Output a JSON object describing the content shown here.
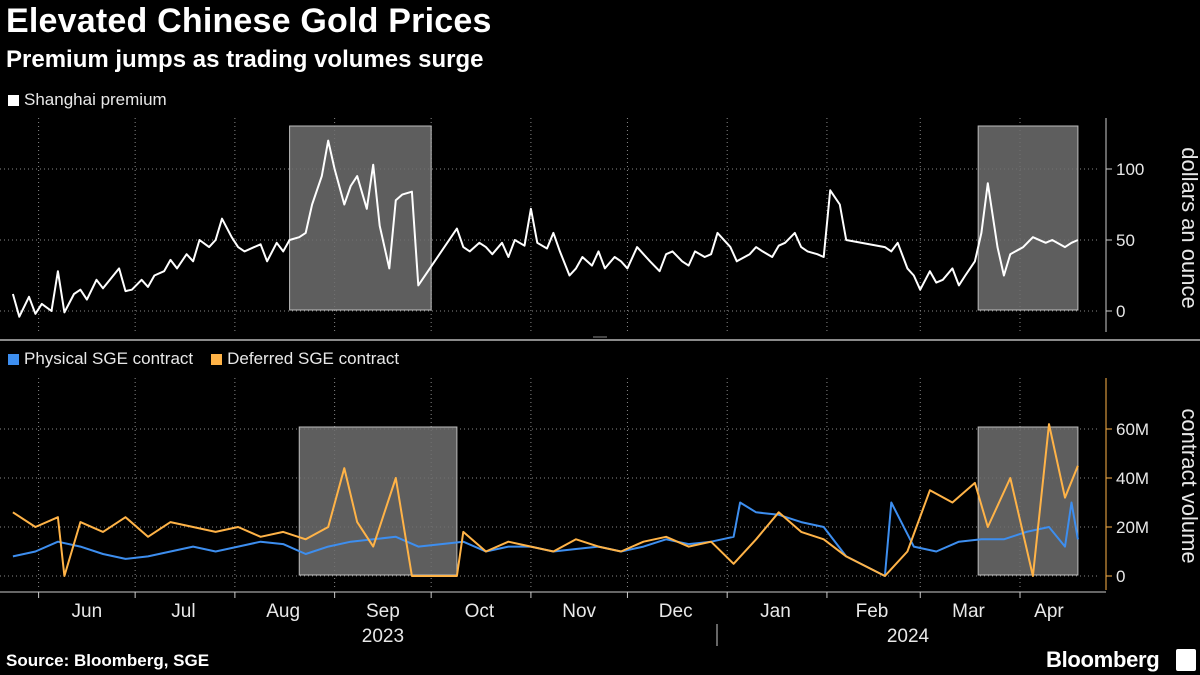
{
  "title": "Elevated Chinese Gold Prices",
  "subtitle": "Premium jumps as trading volumes surge",
  "source": "Source: Bloomberg, SGE",
  "brand": "Bloomberg",
  "colors": {
    "premium": "#ffffff",
    "physical": "#3d8eef",
    "deferred": "#ffb347",
    "grid": "#888888",
    "highlight": "#6e6e6e"
  },
  "chart_data": [
    {
      "type": "line",
      "ylabel": "dollars an ounce",
      "ylim": [
        -15,
        135
      ],
      "yticks": [
        0,
        50,
        100
      ],
      "grid": true,
      "legend_position": "top-left",
      "x_tick_labels": [
        "Jun",
        "Jul",
        "Aug",
        "Sep",
        "Oct",
        "Nov",
        "Dec",
        "Jan",
        "Feb",
        "Mar",
        "Apr"
      ],
      "year_labels": [
        "2023",
        "2024"
      ],
      "highlights": [
        {
          "from": "2023-08-18",
          "to": "2023-10-01"
        },
        {
          "from": "2024-03-19",
          "to": "2024-04-19"
        }
      ],
      "series": [
        {
          "name": "Shanghai premium",
          "color": "#ffffff",
          "x": [
            "2023-05-24",
            "2023-05-26",
            "2023-05-29",
            "2023-05-31",
            "2023-06-02",
            "2023-06-05",
            "2023-06-07",
            "2023-06-09",
            "2023-06-12",
            "2023-06-14",
            "2023-06-16",
            "2023-06-19",
            "2023-06-21",
            "2023-06-26",
            "2023-06-28",
            "2023-06-30",
            "2023-07-03",
            "2023-07-05",
            "2023-07-07",
            "2023-07-10",
            "2023-07-12",
            "2023-07-14",
            "2023-07-17",
            "2023-07-19",
            "2023-07-21",
            "2023-07-24",
            "2023-07-26",
            "2023-07-28",
            "2023-07-31",
            "2023-08-02",
            "2023-08-04",
            "2023-08-07",
            "2023-08-09",
            "2023-08-11",
            "2023-08-14",
            "2023-08-16",
            "2023-08-18",
            "2023-08-21",
            "2023-08-23",
            "2023-08-25",
            "2023-08-28",
            "2023-08-30",
            "2023-09-01",
            "2023-09-04",
            "2023-09-06",
            "2023-09-08",
            "2023-09-11",
            "2023-09-13",
            "2023-09-15",
            "2023-09-18",
            "2023-09-20",
            "2023-09-22",
            "2023-09-25",
            "2023-09-27",
            "2023-10-09",
            "2023-10-11",
            "2023-10-13",
            "2023-10-16",
            "2023-10-18",
            "2023-10-20",
            "2023-10-23",
            "2023-10-25",
            "2023-10-27",
            "2023-10-30",
            "2023-11-01",
            "2023-11-03",
            "2023-11-06",
            "2023-11-08",
            "2023-11-10",
            "2023-11-13",
            "2023-11-15",
            "2023-11-17",
            "2023-11-20",
            "2023-11-22",
            "2023-11-24",
            "2023-11-27",
            "2023-11-29",
            "2023-12-01",
            "2023-12-04",
            "2023-12-06",
            "2023-12-08",
            "2023-12-11",
            "2023-12-13",
            "2023-12-15",
            "2023-12-18",
            "2023-12-20",
            "2023-12-22",
            "2023-12-25",
            "2023-12-27",
            "2023-12-29",
            "2024-01-02",
            "2024-01-04",
            "2024-01-08",
            "2024-01-10",
            "2024-01-12",
            "2024-01-15",
            "2024-01-17",
            "2024-01-19",
            "2024-01-22",
            "2024-01-24",
            "2024-01-26",
            "2024-01-29",
            "2024-01-31",
            "2024-02-02",
            "2024-02-05",
            "2024-02-07",
            "2024-02-19",
            "2024-02-21",
            "2024-02-23",
            "2024-02-26",
            "2024-02-28",
            "2024-03-01",
            "2024-03-04",
            "2024-03-06",
            "2024-03-08",
            "2024-03-11",
            "2024-03-13",
            "2024-03-15",
            "2024-03-18",
            "2024-03-20",
            "2024-03-22",
            "2024-03-25",
            "2024-03-27",
            "2024-03-29",
            "2024-04-02",
            "2024-04-05",
            "2024-04-09",
            "2024-04-11",
            "2024-04-15",
            "2024-04-17",
            "2024-04-19"
          ],
          "y": [
            12,
            -4,
            10,
            -2,
            5,
            0,
            28,
            -1,
            12,
            15,
            8,
            22,
            16,
            30,
            14,
            15,
            22,
            17,
            25,
            28,
            36,
            30,
            40,
            35,
            50,
            45,
            50,
            65,
            52,
            45,
            42,
            45,
            47,
            35,
            48,
            42,
            50,
            52,
            55,
            75,
            95,
            120,
            100,
            75,
            88,
            95,
            72,
            103,
            60,
            30,
            78,
            82,
            84,
            18,
            58,
            45,
            42,
            48,
            45,
            40,
            48,
            38,
            50,
            46,
            72,
            48,
            44,
            55,
            42,
            25,
            30,
            38,
            32,
            42,
            30,
            38,
            35,
            30,
            45,
            40,
            35,
            28,
            40,
            42,
            35,
            32,
            42,
            38,
            40,
            55,
            45,
            35,
            40,
            45,
            42,
            38,
            46,
            48,
            55,
            45,
            42,
            40,
            38,
            85,
            75,
            50,
            45,
            42,
            48,
            30,
            25,
            15,
            28,
            20,
            22,
            30,
            18,
            25,
            35,
            55,
            90,
            45,
            25,
            40,
            45,
            52,
            48,
            50,
            45,
            48,
            50
          ]
        }
      ]
    },
    {
      "type": "line",
      "ylabel": "contract volume",
      "ylim": [
        0,
        80
      ],
      "yticks": [
        0,
        20,
        40,
        60
      ],
      "ytick_labels": [
        "0",
        "20M",
        "40M",
        "60M"
      ],
      "grid": true,
      "legend_position": "top-left",
      "x_tick_labels": [
        "Jun",
        "Jul",
        "Aug",
        "Sep",
        "Oct",
        "Nov",
        "Dec",
        "Jan",
        "Feb",
        "Mar",
        "Apr"
      ],
      "year_labels": [
        "2023",
        "2024"
      ],
      "highlights": [
        {
          "from": "2023-08-21",
          "to": "2023-10-09"
        },
        {
          "from": "2024-03-19",
          "to": "2024-04-19"
        }
      ],
      "series": [
        {
          "name": "Physical SGE contract",
          "color": "#3d8eef",
          "x": [
            "2023-05-24",
            "2023-05-31",
            "2023-06-07",
            "2023-06-14",
            "2023-06-21",
            "2023-06-28",
            "2023-07-05",
            "2023-07-12",
            "2023-07-19",
            "2023-07-26",
            "2023-08-02",
            "2023-08-09",
            "2023-08-16",
            "2023-08-23",
            "2023-08-30",
            "2023-09-06",
            "2023-09-13",
            "2023-09-20",
            "2023-09-27",
            "2023-10-11",
            "2023-10-18",
            "2023-10-25",
            "2023-11-01",
            "2023-11-08",
            "2023-11-15",
            "2023-11-22",
            "2023-11-29",
            "2023-12-06",
            "2023-12-13",
            "2023-12-20",
            "2023-12-27",
            "2024-01-03",
            "2024-01-05",
            "2024-01-10",
            "2024-01-17",
            "2024-01-24",
            "2024-01-31",
            "2024-02-07",
            "2024-02-19",
            "2024-02-21",
            "2024-02-28",
            "2024-03-06",
            "2024-03-13",
            "2024-03-20",
            "2024-03-27",
            "2024-04-03",
            "2024-04-10",
            "2024-04-15",
            "2024-04-17",
            "2024-04-19"
          ],
          "y": [
            8,
            10,
            14,
            12,
            9,
            7,
            8,
            10,
            12,
            10,
            12,
            14,
            13,
            9,
            12,
            14,
            15,
            16,
            12,
            14,
            10,
            12,
            12,
            10,
            11,
            12,
            10,
            12,
            15,
            13,
            14,
            16,
            30,
            26,
            25,
            22,
            20,
            8,
            0,
            30,
            12,
            10,
            14,
            15,
            15,
            18,
            20,
            12,
            30,
            15
          ]
        },
        {
          "name": "Deferred SGE contract",
          "color": "#ffb347",
          "x": [
            "2023-05-24",
            "2023-05-31",
            "2023-06-07",
            "2023-06-09",
            "2023-06-14",
            "2023-06-21",
            "2023-06-28",
            "2023-07-05",
            "2023-07-12",
            "2023-07-19",
            "2023-07-26",
            "2023-08-02",
            "2023-08-09",
            "2023-08-16",
            "2023-08-23",
            "2023-08-30",
            "2023-09-04",
            "2023-09-08",
            "2023-09-13",
            "2023-09-20",
            "2023-09-25",
            "2023-09-28",
            "2023-10-09",
            "2023-10-11",
            "2023-10-18",
            "2023-10-25",
            "2023-11-01",
            "2023-11-08",
            "2023-11-15",
            "2023-11-22",
            "2023-11-29",
            "2023-12-06",
            "2023-12-13",
            "2023-12-20",
            "2023-12-27",
            "2024-01-03",
            "2024-01-10",
            "2024-01-17",
            "2024-01-24",
            "2024-01-31",
            "2024-02-07",
            "2024-02-19",
            "2024-02-26",
            "2024-03-04",
            "2024-03-11",
            "2024-03-18",
            "2024-03-22",
            "2024-03-29",
            "2024-04-05",
            "2024-04-10",
            "2024-04-15",
            "2024-04-19"
          ],
          "y": [
            26,
            20,
            24,
            0,
            22,
            18,
            24,
            16,
            22,
            20,
            18,
            20,
            16,
            18,
            15,
            20,
            44,
            22,
            12,
            40,
            0,
            0,
            0,
            18,
            10,
            14,
            12,
            10,
            15,
            12,
            10,
            14,
            16,
            12,
            14,
            5,
            15,
            26,
            18,
            15,
            8,
            0,
            10,
            35,
            30,
            38,
            20,
            40,
            0,
            62,
            32,
            45
          ]
        }
      ]
    }
  ]
}
